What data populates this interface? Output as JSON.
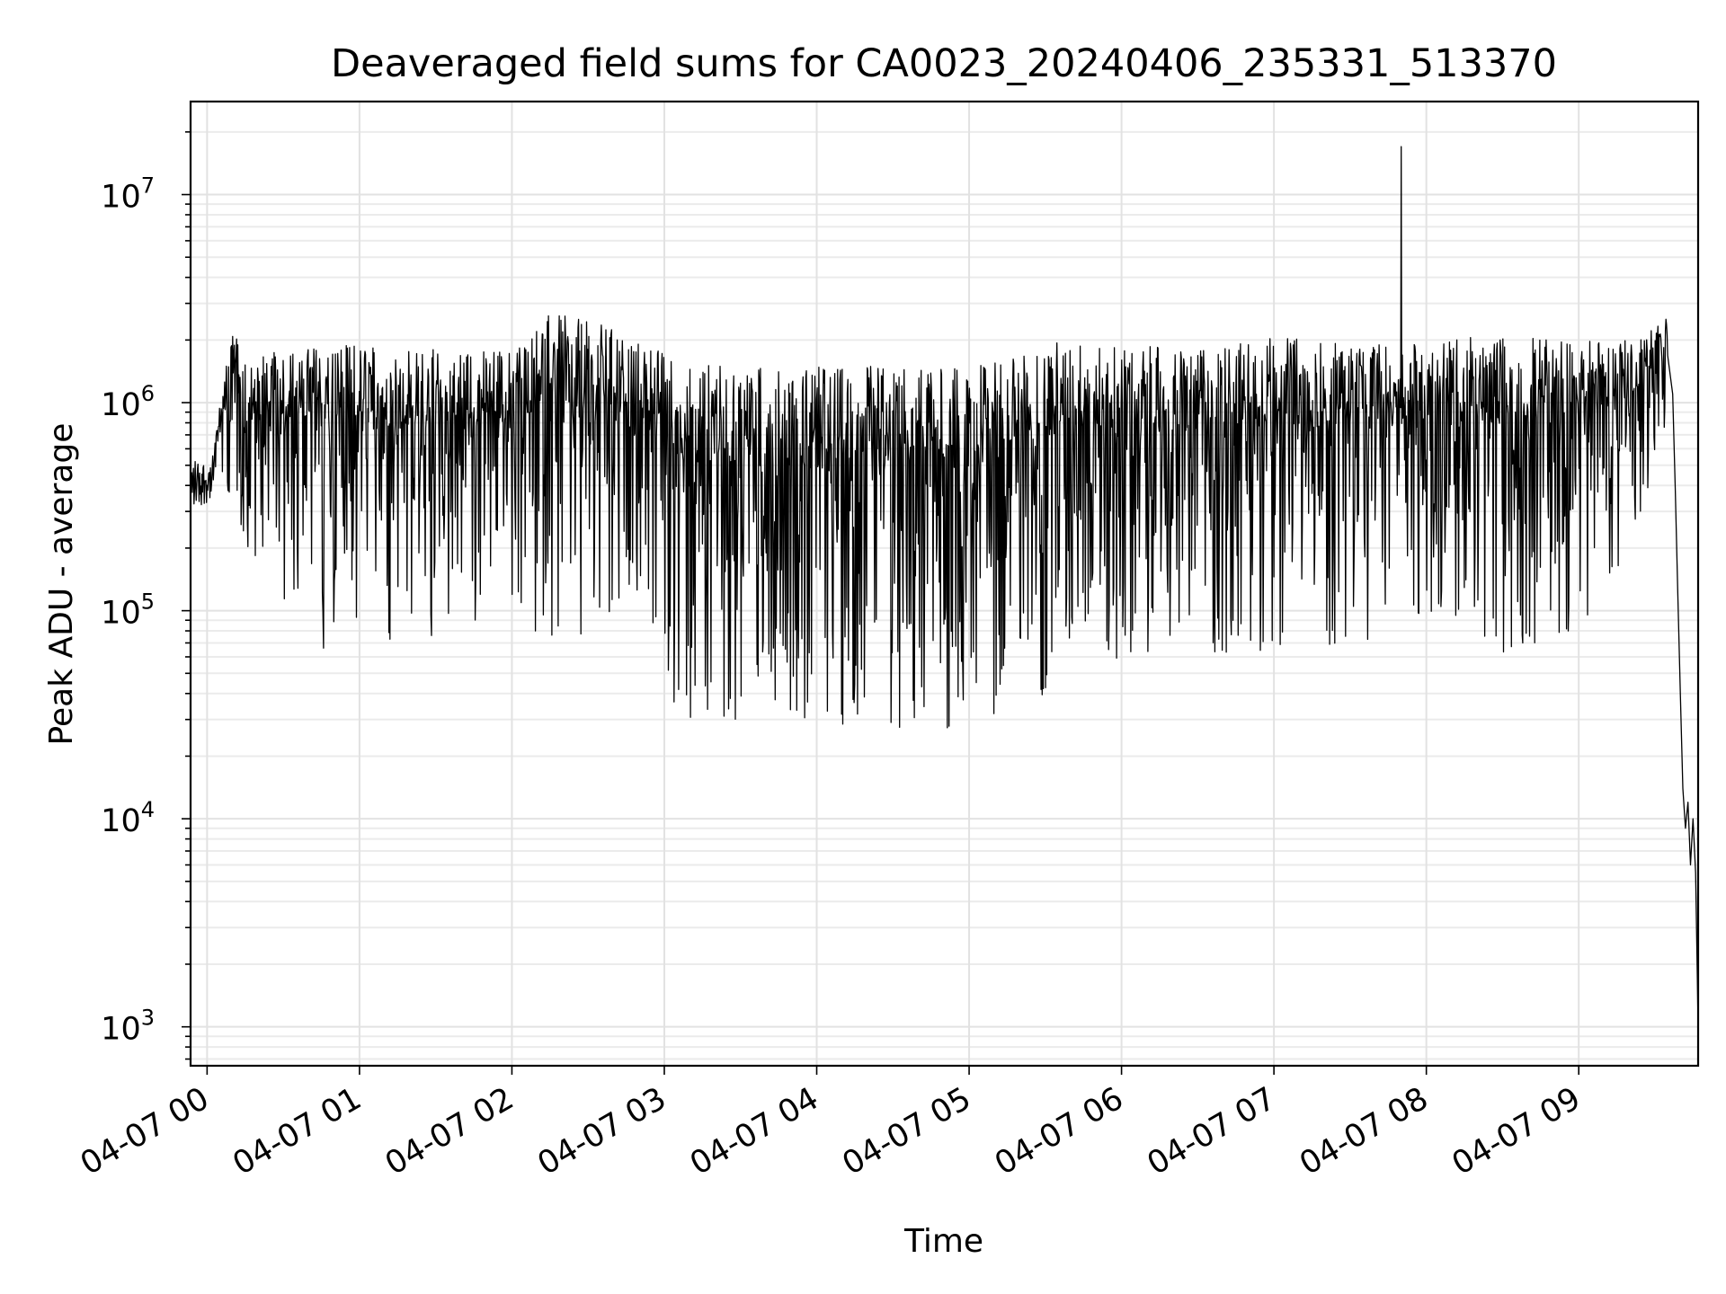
{
  "chart_data": {
    "type": "line",
    "title": "Deaveraged field sums for CA0023_20240406_235331_513370",
    "xlabel": "Time",
    "ylabel": "Peak ADU - average",
    "yscale": "log",
    "ylim": [
      650,
      28000000
    ],
    "xlim": [
      "2024-04-06T23:53:30",
      "2024-04-07T09:47:00"
    ],
    "x_ticks": [
      "04-07 00",
      "04-07 01",
      "04-07 02",
      "04-07 03",
      "04-07 04",
      "04-07 05",
      "04-07 06",
      "04-07 07",
      "04-07 08",
      "04-07 09"
    ],
    "y_ticks": [
      {
        "base": "10",
        "exp": "3",
        "value": 1000
      },
      {
        "base": "10",
        "exp": "4",
        "value": 10000
      },
      {
        "base": "10",
        "exp": "5",
        "value": 100000
      },
      {
        "base": "10",
        "exp": "6",
        "value": 1000000
      },
      {
        "base": "10",
        "exp": "7",
        "value": 10000000
      }
    ],
    "grid": true,
    "line_color": "#000000",
    "envelope": [
      {
        "x": "2024-04-06T23:53:30",
        "high": 550000,
        "low": 300000
      },
      {
        "x": "2024-04-07T00:02:00",
        "high": 530000,
        "low": 340000
      },
      {
        "x": "2024-04-07T00:04:00",
        "high": 800000,
        "low": 500000
      },
      {
        "x": "2024-04-07T00:10:00",
        "high": 2400000,
        "low": 280000
      },
      {
        "x": "2024-04-07T00:15:00",
        "high": 1600000,
        "low": 180000
      },
      {
        "x": "2024-04-07T00:30:00",
        "high": 1800000,
        "low": 110000
      },
      {
        "x": "2024-04-07T00:45:00",
        "high": 1900000,
        "low": 60000
      },
      {
        "x": "2024-04-07T01:00:00",
        "high": 1900000,
        "low": 70000
      },
      {
        "x": "2024-04-07T01:30:00",
        "high": 1800000,
        "low": 75000
      },
      {
        "x": "2024-04-07T02:00:00",
        "high": 1800000,
        "low": 100000
      },
      {
        "x": "2024-04-07T02:15:00",
        "high": 2700000,
        "low": 65000
      },
      {
        "x": "2024-04-07T02:35:00",
        "high": 2400000,
        "low": 75000
      },
      {
        "x": "2024-04-07T02:55:00",
        "high": 1900000,
        "low": 90000
      },
      {
        "x": "2024-04-07T03:05:00",
        "high": 1600000,
        "low": 30000
      },
      {
        "x": "2024-04-07T03:30:00",
        "high": 1500000,
        "low": 30000
      },
      {
        "x": "2024-04-07T04:00:00",
        "high": 1500000,
        "low": 30000
      },
      {
        "x": "2024-04-07T04:30:00",
        "high": 1500000,
        "low": 25000
      },
      {
        "x": "2024-04-07T05:00:00",
        "high": 1500000,
        "low": 27000
      },
      {
        "x": "2024-04-07T05:30:00",
        "high": 1800000,
        "low": 40000
      },
      {
        "x": "2024-04-07T05:35:00",
        "high": 2000000,
        "low": 60000
      },
      {
        "x": "2024-04-07T06:00:00",
        "high": 1900000,
        "low": 55000
      },
      {
        "x": "2024-04-07T06:30:00",
        "high": 1800000,
        "low": 60000
      },
      {
        "x": "2024-04-07T07:00:00",
        "high": 2100000,
        "low": 60000
      },
      {
        "x": "2024-04-07T07:30:00",
        "high": 1900000,
        "low": 70000
      },
      {
        "x": "2024-04-07T08:00:00",
        "high": 2000000,
        "low": 80000
      },
      {
        "x": "2024-04-07T08:30:00",
        "high": 2100000,
        "low": 60000
      },
      {
        "x": "2024-04-07T09:00:00",
        "high": 2000000,
        "low": 80000
      },
      {
        "x": "2024-04-07T09:20:00",
        "high": 2000000,
        "low": 200000
      },
      {
        "x": "2024-04-07T09:35:00",
        "high": 2600000,
        "low": 800000
      }
    ],
    "features": [
      {
        "x": "2024-04-07T07:50:00",
        "y": 17000000,
        "label": "spike"
      }
    ],
    "tail": [
      {
        "x": "2024-04-07T09:37:00",
        "y": 1100000
      },
      {
        "x": "2024-04-07T09:38:00",
        "y": 380000
      },
      {
        "x": "2024-04-07T09:39:00",
        "y": 120000
      },
      {
        "x": "2024-04-07T09:40:00",
        "y": 40000
      },
      {
        "x": "2024-04-07T09:41:00",
        "y": 14000
      },
      {
        "x": "2024-04-07T09:42:00",
        "y": 9000
      },
      {
        "x": "2024-04-07T09:43:00",
        "y": 12000
      },
      {
        "x": "2024-04-07T09:44:00",
        "y": 6000
      },
      {
        "x": "2024-04-07T09:45:00",
        "y": 10000
      },
      {
        "x": "2024-04-07T09:46:00",
        "y": 5500
      },
      {
        "x": "2024-04-07T09:47:00",
        "y": 1000
      }
    ]
  }
}
